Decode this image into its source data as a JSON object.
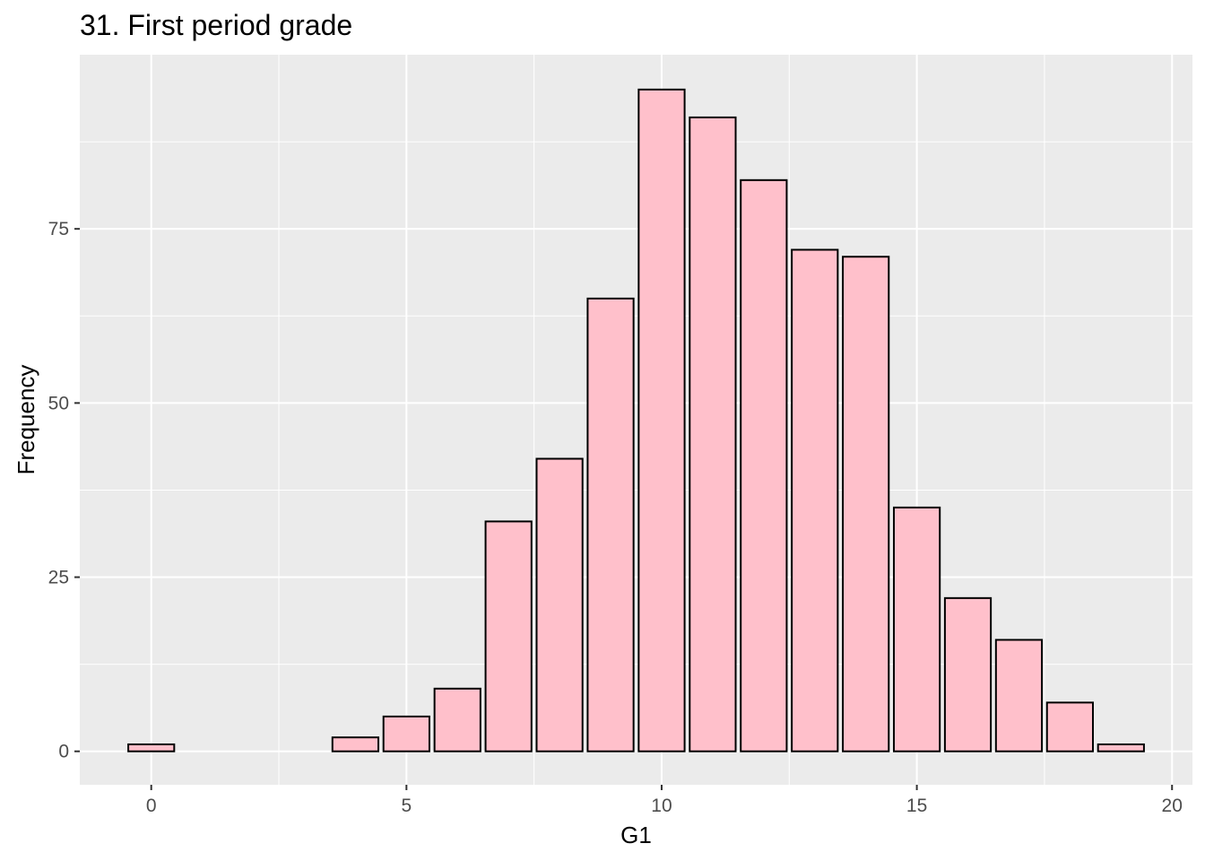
{
  "chart_data": {
    "type": "bar",
    "title": "31. First period grade",
    "xlabel": "G1",
    "ylabel": "Frequency",
    "x": [
      0,
      4,
      5,
      6,
      7,
      8,
      9,
      10,
      11,
      12,
      13,
      14,
      15,
      16,
      17,
      18,
      19
    ],
    "values": [
      1,
      2,
      5,
      9,
      33,
      42,
      65,
      95,
      91,
      82,
      72,
      71,
      35,
      22,
      16,
      7,
      1
    ],
    "xlim": [
      -1.4,
      20.4
    ],
    "ylim": [
      -4.8,
      100
    ],
    "x_ticks": [
      0,
      5,
      10,
      15,
      20
    ],
    "y_ticks": [
      0,
      25,
      50,
      75
    ],
    "grid": true,
    "colors": {
      "panel_background": "#ebebeb",
      "grid": "#ffffff",
      "bar_fill": "#ffc0cb",
      "bar_outline": "#000000"
    }
  }
}
